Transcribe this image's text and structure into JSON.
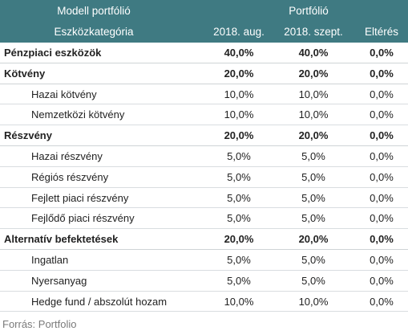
{
  "header": {
    "model_portfolio": "Modell portfólió",
    "portfolio": "Portfólió",
    "asset_class": "Eszközkategória",
    "col_aug": "2018. aug.",
    "col_sep": "2018. szept.",
    "col_diff": "Eltérés"
  },
  "rows": [
    {
      "label": "Pénzpiaci eszközök",
      "aug": "40,0%",
      "sep": "40,0%",
      "diff": "0,0%"
    },
    {
      "label": "Kötvény",
      "aug": "20,0%",
      "sep": "20,0%",
      "diff": "0,0%"
    },
    {
      "label": "Hazai kötvény",
      "aug": "10,0%",
      "sep": "10,0%",
      "diff": "0,0%"
    },
    {
      "label": "Nemzetközi kötvény",
      "aug": "10,0%",
      "sep": "10,0%",
      "diff": "0,0%"
    },
    {
      "label": "Részvény",
      "aug": "20,0%",
      "sep": "20,0%",
      "diff": "0,0%"
    },
    {
      "label": "Hazai részvény",
      "aug": "5,0%",
      "sep": "5,0%",
      "diff": "0,0%"
    },
    {
      "label": "Régiós részvény",
      "aug": "5,0%",
      "sep": "5,0%",
      "diff": "0,0%"
    },
    {
      "label": "Fejlett piaci részvény",
      "aug": "5,0%",
      "sep": "5,0%",
      "diff": "0,0%"
    },
    {
      "label": "Fejlődő piaci részvény",
      "aug": "5,0%",
      "sep": "5,0%",
      "diff": "0,0%"
    },
    {
      "label": "Alternatív befektetések",
      "aug": "20,0%",
      "sep": "20,0%",
      "diff": "0,0%"
    },
    {
      "label": "Ingatlan",
      "aug": "5,0%",
      "sep": "5,0%",
      "diff": "0,0%"
    },
    {
      "label": "Nyersanyag",
      "aug": "5,0%",
      "sep": "5,0%",
      "diff": "0,0%"
    },
    {
      "label": "Hedge fund / abszolút hozam",
      "aug": "10,0%",
      "sep": "10,0%",
      "diff": "0,0%"
    }
  ],
  "source": "Forrás: Portfolio",
  "colors": {
    "header_bg": "#3f7a82",
    "header_text": "#ffffff",
    "source_text": "#7a7a7a"
  }
}
